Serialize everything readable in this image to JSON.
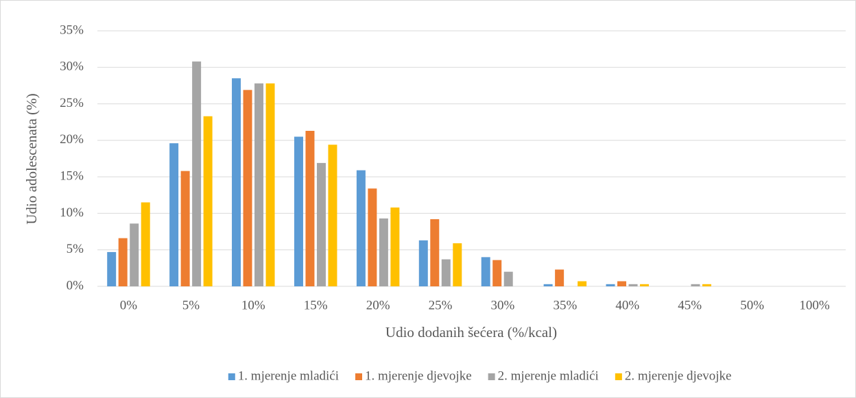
{
  "chart_data": {
    "type": "bar",
    "ylabel": "Udio adolescenata (%)",
    "xlabel": "Udio dodanih šećera (%/kcal)",
    "categories": [
      "0%",
      "5%",
      "10%",
      "15%",
      "20%",
      "25%",
      "30%",
      "35%",
      "40%",
      "45%",
      "50%",
      "100%"
    ],
    "series": [
      {
        "name": "1. mjerenje mladići",
        "color": "#5b9bd5",
        "values": [
          4.7,
          19.6,
          28.5,
          20.5,
          15.9,
          6.3,
          4.0,
          0.3,
          0.3,
          0,
          0,
          0
        ]
      },
      {
        "name": "1. mjerenje djevojke",
        "color": "#ed7d31",
        "values": [
          6.6,
          15.8,
          26.9,
          21.3,
          13.4,
          9.2,
          3.6,
          2.3,
          0.7,
          0,
          0,
          0
        ]
      },
      {
        "name": "2. mjerenje mladići",
        "color": "#a5a5a5",
        "values": [
          8.6,
          30.8,
          27.8,
          16.9,
          9.3,
          3.7,
          2.0,
          0,
          0.3,
          0.3,
          0,
          0
        ]
      },
      {
        "name": "2. mjerenje djevojke",
        "color": "#ffc000",
        "values": [
          11.5,
          23.3,
          27.8,
          19.4,
          10.8,
          5.9,
          0,
          0.7,
          0.3,
          0.3,
          0,
          0
        ]
      }
    ],
    "ylim": [
      0,
      35
    ],
    "yticks": [
      {
        "value": 0,
        "label": "0%"
      },
      {
        "value": 5,
        "label": "5%"
      },
      {
        "value": 10,
        "label": "10%"
      },
      {
        "value": 15,
        "label": "15%"
      },
      {
        "value": 20,
        "label": "20%"
      },
      {
        "value": 25,
        "label": "25%"
      },
      {
        "value": 30,
        "label": "30%"
      },
      {
        "value": 35,
        "label": "35%"
      }
    ],
    "grid": true,
    "legend": "bottom"
  }
}
